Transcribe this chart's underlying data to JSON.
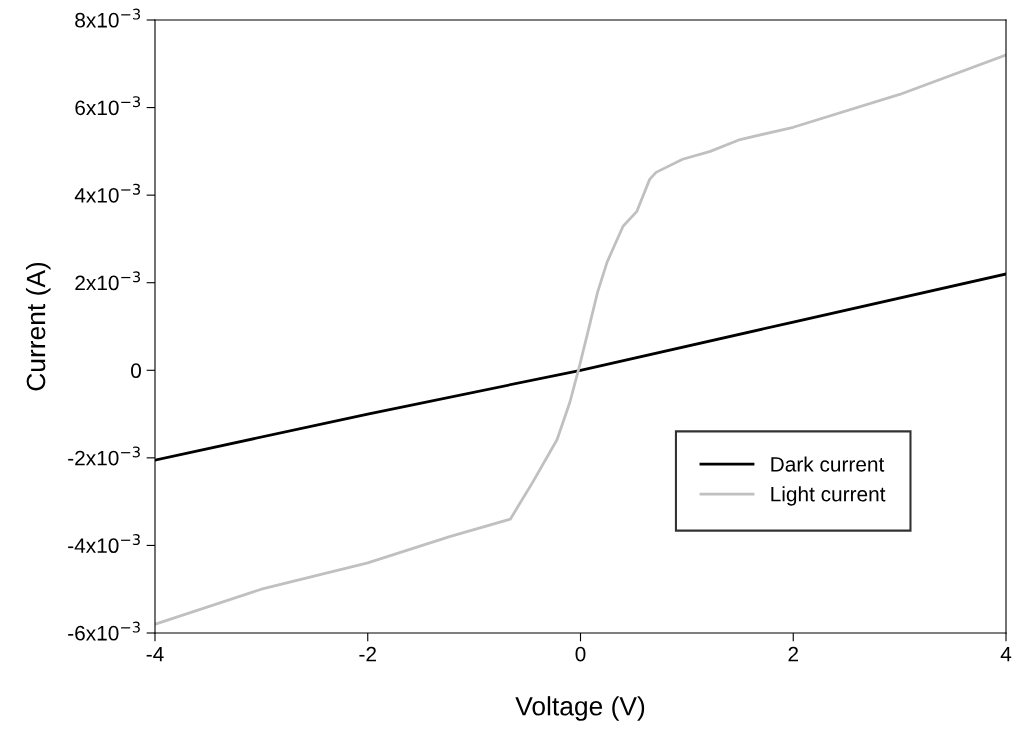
{
  "chart_data": {
    "type": "line",
    "xlabel": "Voltage (V)",
    "ylabel": "Current (A)",
    "xlim": [
      -4,
      4
    ],
    "xticks": [
      -4,
      -2,
      0,
      2,
      4
    ],
    "ylim": [
      -0.006,
      0.008
    ],
    "yticks": [
      {
        "value": -0.006,
        "label": "-6x10$^{−3}$"
      },
      {
        "value": -0.004,
        "label": "-4x10$^{−3}$"
      },
      {
        "value": -0.002,
        "label": "-2x10$^{−3}$"
      },
      {
        "value": 0,
        "label": "0"
      },
      {
        "value": 0.002,
        "label": "2x10$^{−3}$"
      },
      {
        "value": 0.004,
        "label": "4x10$^{−3}$"
      },
      {
        "value": 0.006,
        "label": "6x10$^{−3}$"
      },
      {
        "value": 0.008,
        "label": "8x10$^{−3}$"
      }
    ],
    "grid": false,
    "legend": "bottom right",
    "series": [
      {
        "name": "Dark current",
        "color": "#000000",
        "x": [
          -4,
          -2,
          0,
          2,
          4
        ],
        "values": [
          -0.00205,
          -0.001,
          0,
          0.0011,
          0.0022
        ]
      },
      {
        "name": "Light current",
        "color": "#c0c0c0",
        "x": [
          -4,
          -3,
          -2,
          -1.23,
          -0.66,
          -0.45,
          -0.22,
          -0.1,
          -0.02,
          0.06,
          0.16,
          0.25,
          0.4,
          0.53,
          0.65,
          0.71,
          0.96,
          1.22,
          1.5,
          2,
          3,
          4
        ],
        "values": [
          -0.0058,
          -0.005,
          -0.0044,
          -0.0038,
          -0.0034,
          -0.00256,
          -0.00158,
          -0.00073,
          0,
          0.00078,
          0.00178,
          0.00247,
          0.00329,
          0.00363,
          0.00436,
          0.00452,
          0.00482,
          0.005,
          0.00527,
          0.00555,
          0.0063,
          0.0072
        ]
      }
    ]
  }
}
